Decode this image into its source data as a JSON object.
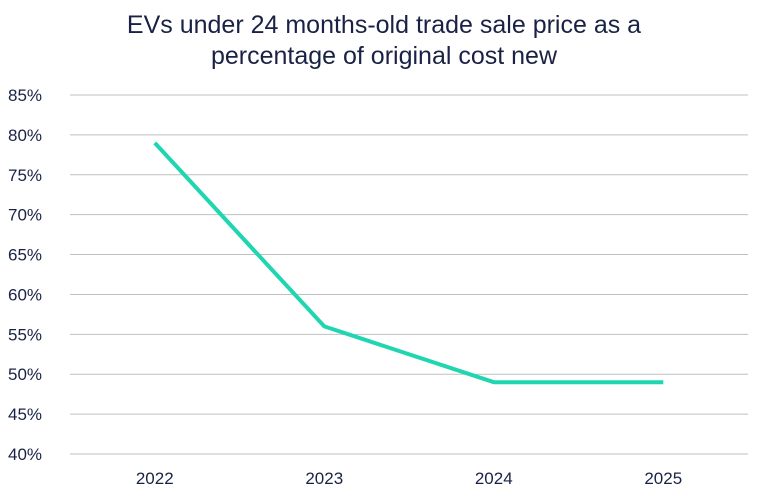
{
  "chart_data": {
    "type": "line",
    "title_lines": [
      "EVs under 24 months-old trade sale price as a",
      "percentage of original cost new"
    ],
    "categories": [
      "2022",
      "2023",
      "2024",
      "2025"
    ],
    "series": [
      {
        "values": [
          79,
          56,
          49,
          49
        ],
        "color": "#1fd6b0"
      }
    ],
    "ylim": [
      40,
      85
    ],
    "yticks": [
      40,
      45,
      50,
      55,
      60,
      65,
      70,
      75,
      80,
      85
    ],
    "ytick_labels": [
      "40%",
      "45%",
      "50%",
      "55%",
      "60%",
      "65%",
      "70%",
      "75%",
      "80%",
      "85%"
    ],
    "grid": true,
    "legend": "none",
    "colors": {
      "gridline": "#bfbfbf",
      "text": "#1a2244"
    }
  }
}
